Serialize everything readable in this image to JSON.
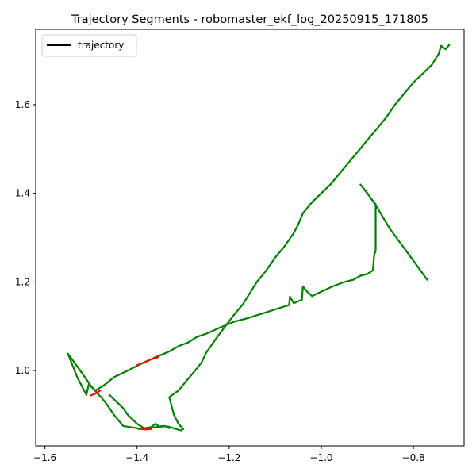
{
  "chart_data": {
    "type": "line",
    "title": "Trajectory Segments - robomaster_ekf_log_20250915_171805",
    "xlabel": "",
    "ylabel": "",
    "xlim": [
      -1.62,
      -0.69
    ],
    "ylim": [
      0.83,
      1.77
    ],
    "xticks": [
      -1.6,
      -1.4,
      -1.2,
      -1.0,
      -0.8
    ],
    "yticks": [
      1.0,
      1.2,
      1.4,
      1.6
    ],
    "grid": false,
    "legend": {
      "position": "top-left",
      "entries": [
        {
          "label": "trajectory",
          "color": "#000000"
        }
      ]
    },
    "colors": {
      "primary": "#008000",
      "highlight": "#ff0000"
    },
    "series": [
      {
        "color": "#008000",
        "points": [
          [
            -0.77,
            1.205
          ],
          [
            -0.81,
            1.262
          ],
          [
            -0.85,
            1.318
          ],
          [
            -0.883,
            1.375
          ],
          [
            -0.9,
            1.4
          ],
          [
            -0.915,
            1.42
          ],
          [
            -0.882,
            1.375
          ],
          [
            -0.882,
            1.31
          ],
          [
            -0.882,
            1.27
          ],
          [
            -0.885,
            1.262
          ],
          [
            -0.888,
            1.226
          ],
          [
            -0.9,
            1.218
          ],
          [
            -0.915,
            1.214
          ],
          [
            -0.93,
            1.205
          ],
          [
            -0.95,
            1.2
          ],
          [
            -0.975,
            1.19
          ],
          [
            -1.0,
            1.178
          ],
          [
            -1.02,
            1.168
          ],
          [
            -1.03,
            1.177
          ],
          [
            -1.04,
            1.19
          ],
          [
            -1.042,
            1.16
          ],
          [
            -1.06,
            1.152
          ],
          [
            -1.068,
            1.167
          ],
          [
            -1.07,
            1.148
          ],
          [
            -1.1,
            1.138
          ],
          [
            -1.13,
            1.128
          ],
          [
            -1.16,
            1.118
          ],
          [
            -1.19,
            1.11
          ],
          [
            -1.22,
            1.097
          ],
          [
            -1.25,
            1.083
          ],
          [
            -1.27,
            1.076
          ],
          [
            -1.29,
            1.063
          ],
          [
            -1.31,
            1.055
          ],
          [
            -1.33,
            1.043
          ],
          [
            -1.36,
            1.03
          ],
          [
            -1.39,
            1.016
          ],
          [
            -1.42,
            1.0
          ],
          [
            -1.45,
            0.985
          ],
          [
            -1.47,
            0.968
          ],
          [
            -1.49,
            0.955
          ],
          [
            -1.505,
            0.968
          ],
          [
            -1.51,
            0.945
          ],
          [
            -1.53,
            0.985
          ],
          [
            -1.55,
            1.038
          ],
          [
            -1.52,
            0.995
          ],
          [
            -1.5,
            0.965
          ],
          [
            -1.47,
            0.93
          ],
          [
            -1.45,
            0.9
          ],
          [
            -1.43,
            0.875
          ],
          [
            -1.4,
            0.87
          ],
          [
            -1.395,
            0.868
          ],
          [
            -1.375,
            0.87
          ],
          [
            -1.36,
            0.872
          ],
          [
            -1.345,
            0.875
          ],
          [
            -1.33,
            0.873
          ],
          [
            -1.315,
            0.868
          ],
          [
            -1.305,
            0.865
          ],
          [
            -1.3,
            0.868
          ]
        ]
      },
      {
        "color": "#008000",
        "points": [
          [
            -1.3,
            0.868
          ],
          [
            -1.31,
            0.88
          ],
          [
            -1.32,
            0.9
          ],
          [
            -1.33,
            0.94
          ],
          [
            -1.31,
            0.955
          ],
          [
            -1.29,
            0.98
          ],
          [
            -1.27,
            1.005
          ],
          [
            -1.26,
            1.018
          ],
          [
            -1.25,
            1.04
          ],
          [
            -1.23,
            1.07
          ],
          [
            -1.21,
            1.098
          ],
          [
            -1.19,
            1.125
          ],
          [
            -1.17,
            1.15
          ],
          [
            -1.155,
            1.175
          ],
          [
            -1.14,
            1.2
          ],
          [
            -1.12,
            1.225
          ],
          [
            -1.1,
            1.255
          ],
          [
            -1.08,
            1.28
          ],
          [
            -1.06,
            1.31
          ],
          [
            -1.05,
            1.33
          ],
          [
            -1.04,
            1.355
          ],
          [
            -1.02,
            1.38
          ],
          [
            -1.0,
            1.4
          ],
          [
            -0.98,
            1.42
          ],
          [
            -0.96,
            1.445
          ],
          [
            -0.94,
            1.47
          ],
          [
            -0.92,
            1.495
          ],
          [
            -0.9,
            1.52
          ],
          [
            -0.88,
            1.545
          ],
          [
            -0.86,
            1.57
          ],
          [
            -0.84,
            1.6
          ],
          [
            -0.82,
            1.625
          ],
          [
            -0.8,
            1.65
          ],
          [
            -0.78,
            1.67
          ],
          [
            -0.76,
            1.69
          ],
          [
            -0.745,
            1.715
          ],
          [
            -0.74,
            1.733
          ],
          [
            -0.73,
            1.725
          ],
          [
            -0.722,
            1.735
          ]
        ]
      },
      {
        "color": "#008000",
        "points": [
          [
            -1.46,
            0.945
          ],
          [
            -1.445,
            0.93
          ],
          [
            -1.43,
            0.915
          ],
          [
            -1.42,
            0.9
          ],
          [
            -1.4,
            0.88
          ],
          [
            -1.385,
            0.87
          ],
          [
            -1.37,
            0.872
          ],
          [
            -1.36,
            0.88
          ],
          [
            -1.35,
            0.872
          ],
          [
            -1.34,
            0.875
          ],
          [
            -1.33,
            0.87
          ]
        ]
      },
      {
        "color": "#ff0000",
        "points": [
          [
            -1.355,
            1.03
          ],
          [
            -1.37,
            1.025
          ],
          [
            -1.385,
            1.018
          ],
          [
            -1.4,
            1.012
          ]
        ]
      },
      {
        "color": "#ff0000",
        "points": [
          [
            -1.48,
            0.955
          ],
          [
            -1.49,
            0.948
          ],
          [
            -1.5,
            0.944
          ]
        ]
      },
      {
        "color": "#ff0000",
        "points": [
          [
            -1.39,
            0.868
          ],
          [
            -1.38,
            0.867
          ],
          [
            -1.37,
            0.868
          ]
        ]
      }
    ]
  }
}
